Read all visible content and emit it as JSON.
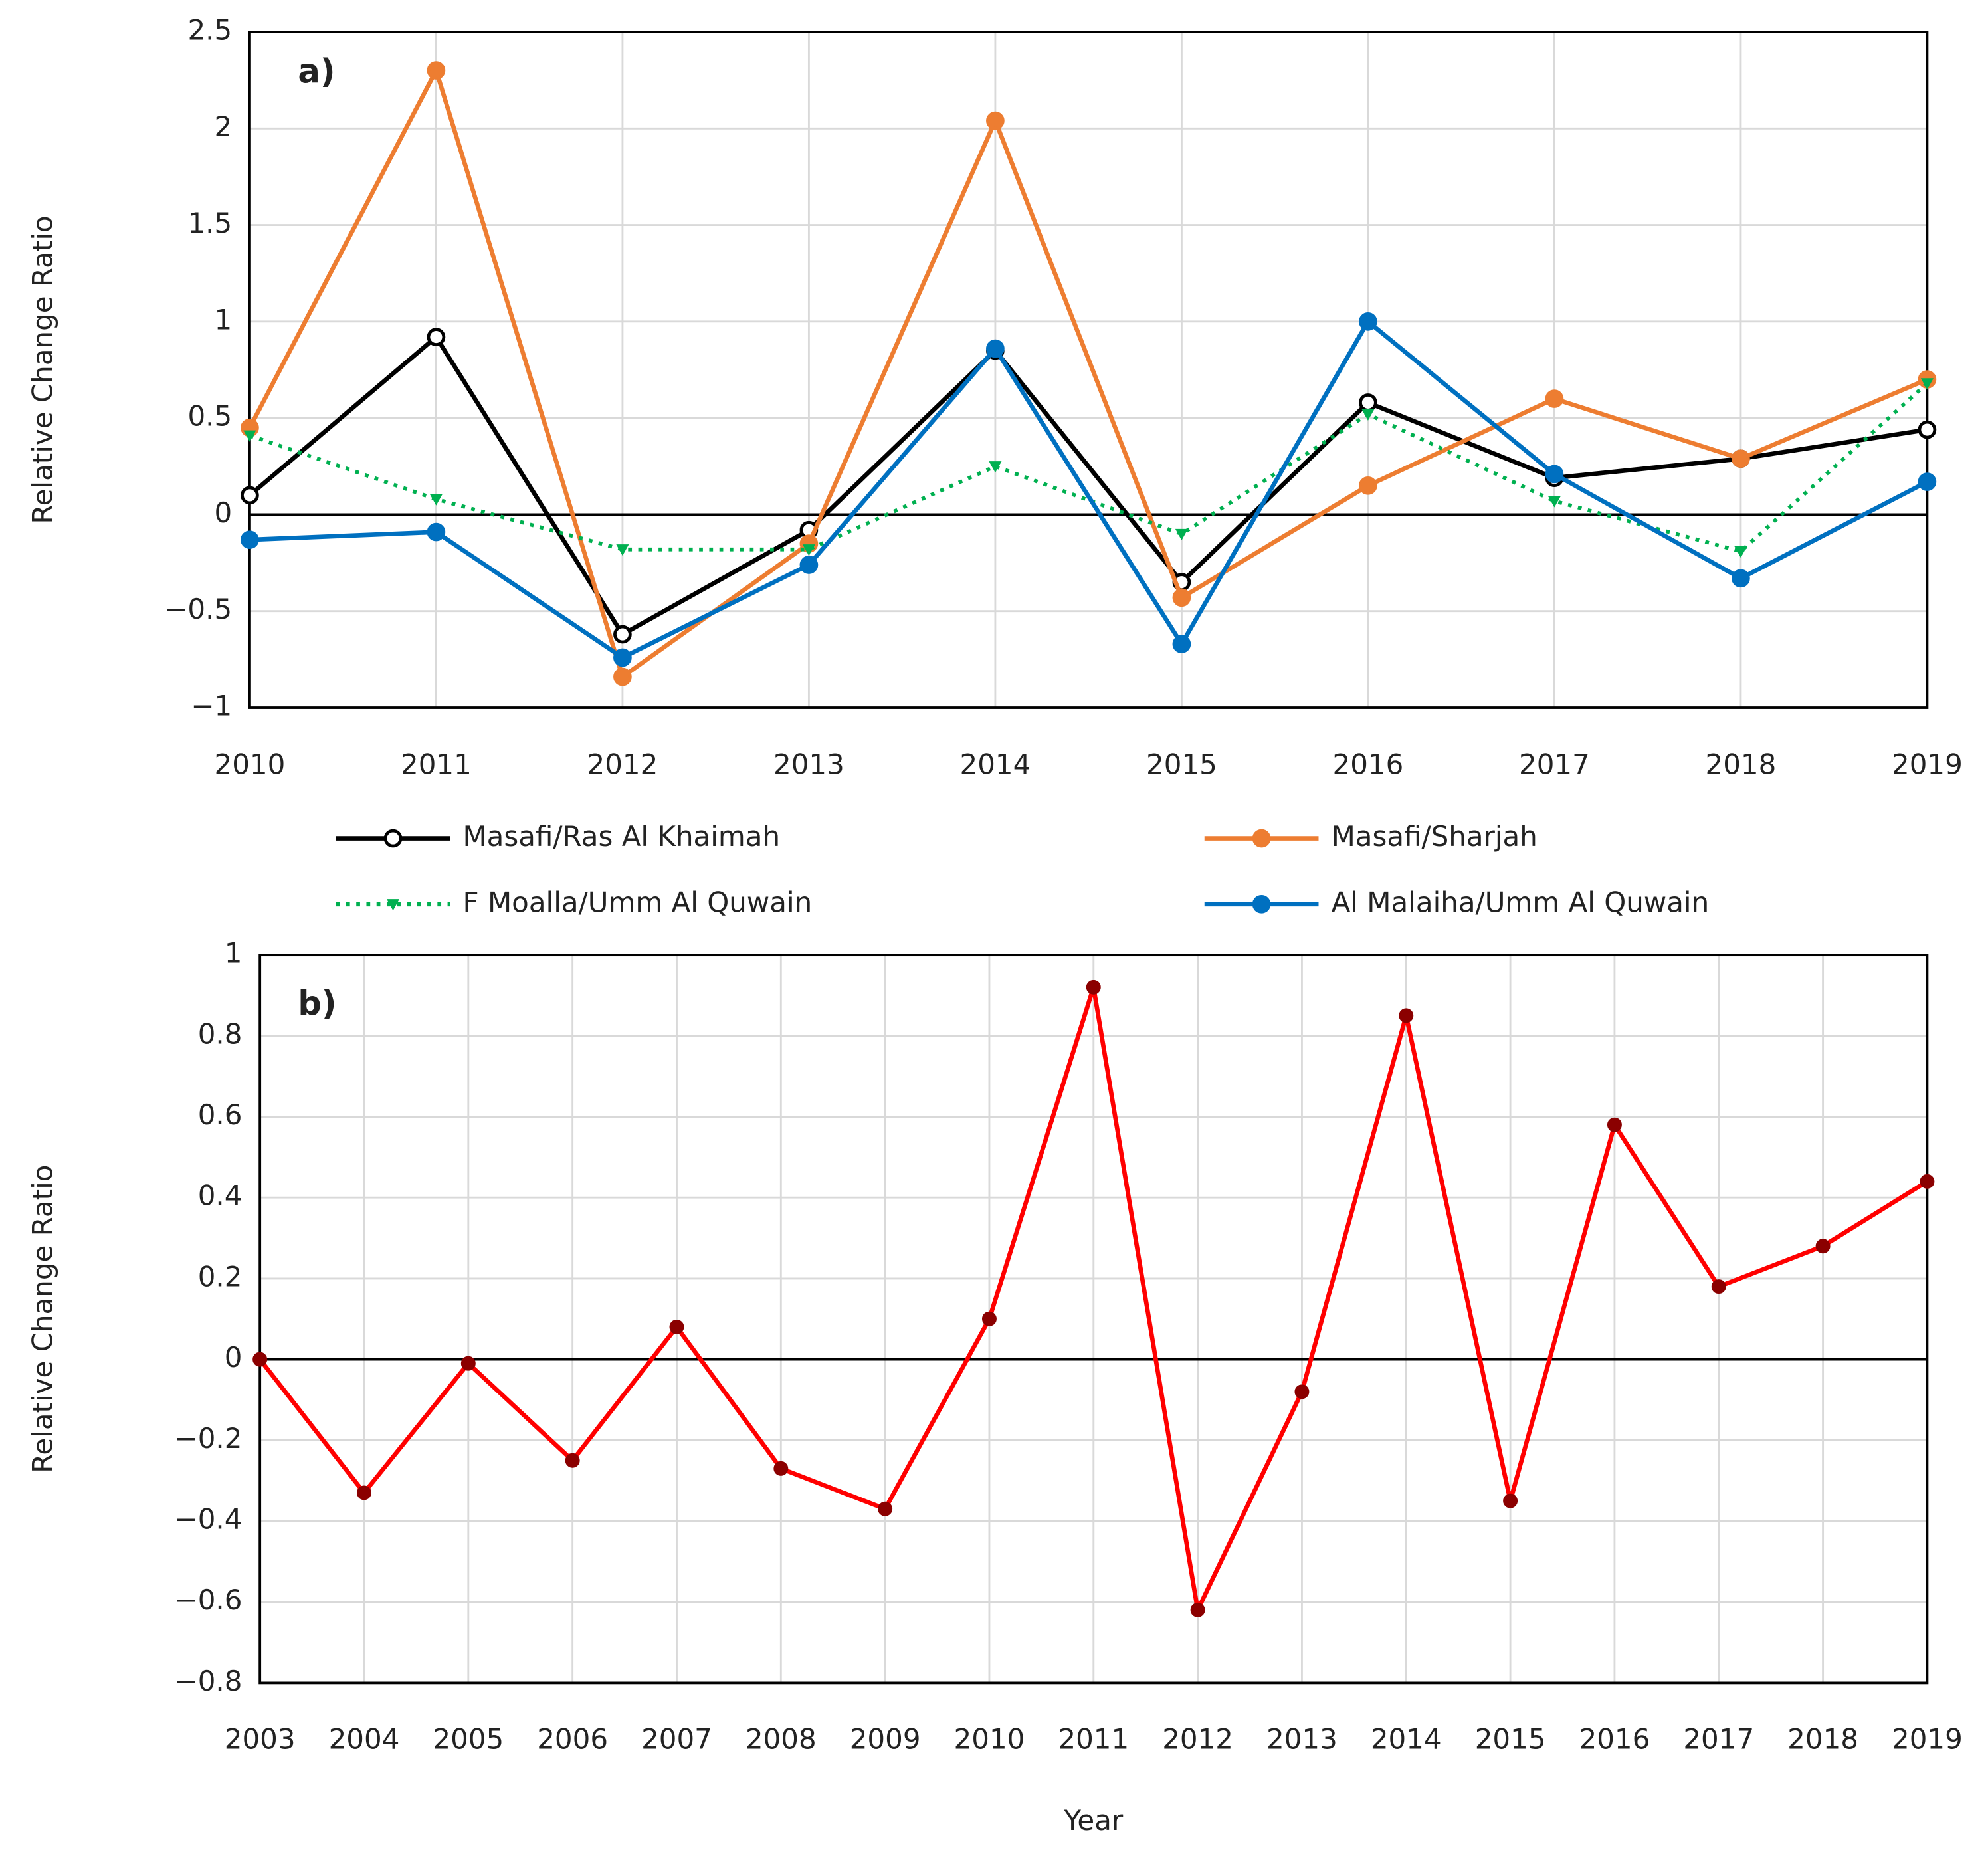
{
  "chart_data": [
    {
      "type": "line",
      "annotation": "a)",
      "y_label": "Relative Change Ratio",
      "categories": [
        "2010",
        "2011",
        "2012",
        "2013",
        "2014",
        "2015",
        "2016",
        "2017",
        "2018",
        "2019"
      ],
      "ylim": [
        -1,
        2.5
      ],
      "yticks": [
        {
          "value": -1,
          "label": "−1"
        },
        {
          "value": -0.5,
          "label": "−0.5"
        },
        0,
        0.5,
        1,
        1.5,
        2,
        2.5
      ],
      "grid": true,
      "series": [
        {
          "name": "Masafi/Ras Al Khaimah",
          "color": "#000000",
          "marker": "hollow-circle",
          "line_style": "solid",
          "values": [
            0.1,
            0.92,
            -0.62,
            -0.08,
            0.85,
            -0.35,
            0.58,
            0.19,
            0.29,
            0.44
          ]
        },
        {
          "name": "Masafi/Sharjah",
          "color": "#ed7d31",
          "marker": "circle",
          "line_style": "solid",
          "values": [
            0.45,
            2.3,
            -0.84,
            -0.15,
            2.04,
            -0.43,
            0.15,
            0.6,
            0.29,
            0.7
          ]
        },
        {
          "name": "F  Moalla/Umm Al Quwain",
          "color": "#00b050",
          "marker": "triangle",
          "line_style": "dotted",
          "values": [
            0.41,
            0.08,
            -0.18,
            -0.18,
            0.25,
            -0.1,
            0.52,
            0.07,
            -0.19,
            0.68
          ]
        },
        {
          "name": "Al Malaiha/Umm Al Quwain",
          "color": "#0070c0",
          "marker": "circle",
          "line_style": "solid",
          "values": [
            -0.13,
            -0.09,
            -0.74,
            -0.26,
            0.86,
            -0.67,
            1.0,
            0.21,
            -0.33,
            0.17
          ]
        }
      ]
    },
    {
      "type": "line",
      "annotation": "b)",
      "y_label": "Relative Change Ratio",
      "x_label": "Year",
      "categories": [
        "2003",
        "2004",
        "2005",
        "2006",
        "2007",
        "2008",
        "2009",
        "2010",
        "2011",
        "2012",
        "2013",
        "2014",
        "2015",
        "2016",
        "2017",
        "2018",
        "2019"
      ],
      "ylim": [
        -0.8,
        1
      ],
      "yticks": [
        {
          "value": -0.8,
          "label": "−0.8"
        },
        {
          "value": -0.6,
          "label": "−0.6"
        },
        {
          "value": -0.4,
          "label": "−0.4"
        },
        {
          "value": -0.2,
          "label": "−0.2"
        },
        0,
        0.2,
        0.4,
        0.6,
        0.8,
        1
      ],
      "grid": true,
      "color": "#ff0000",
      "marker_color": "#8b0000",
      "values": [
        0,
        -0.33,
        -0.01,
        -0.25,
        0.08,
        -0.27,
        -0.37,
        0.1,
        0.92,
        -0.62,
        -0.08,
        0.85,
        -0.35,
        0.58,
        0.18,
        0.28,
        0.44
      ]
    }
  ]
}
